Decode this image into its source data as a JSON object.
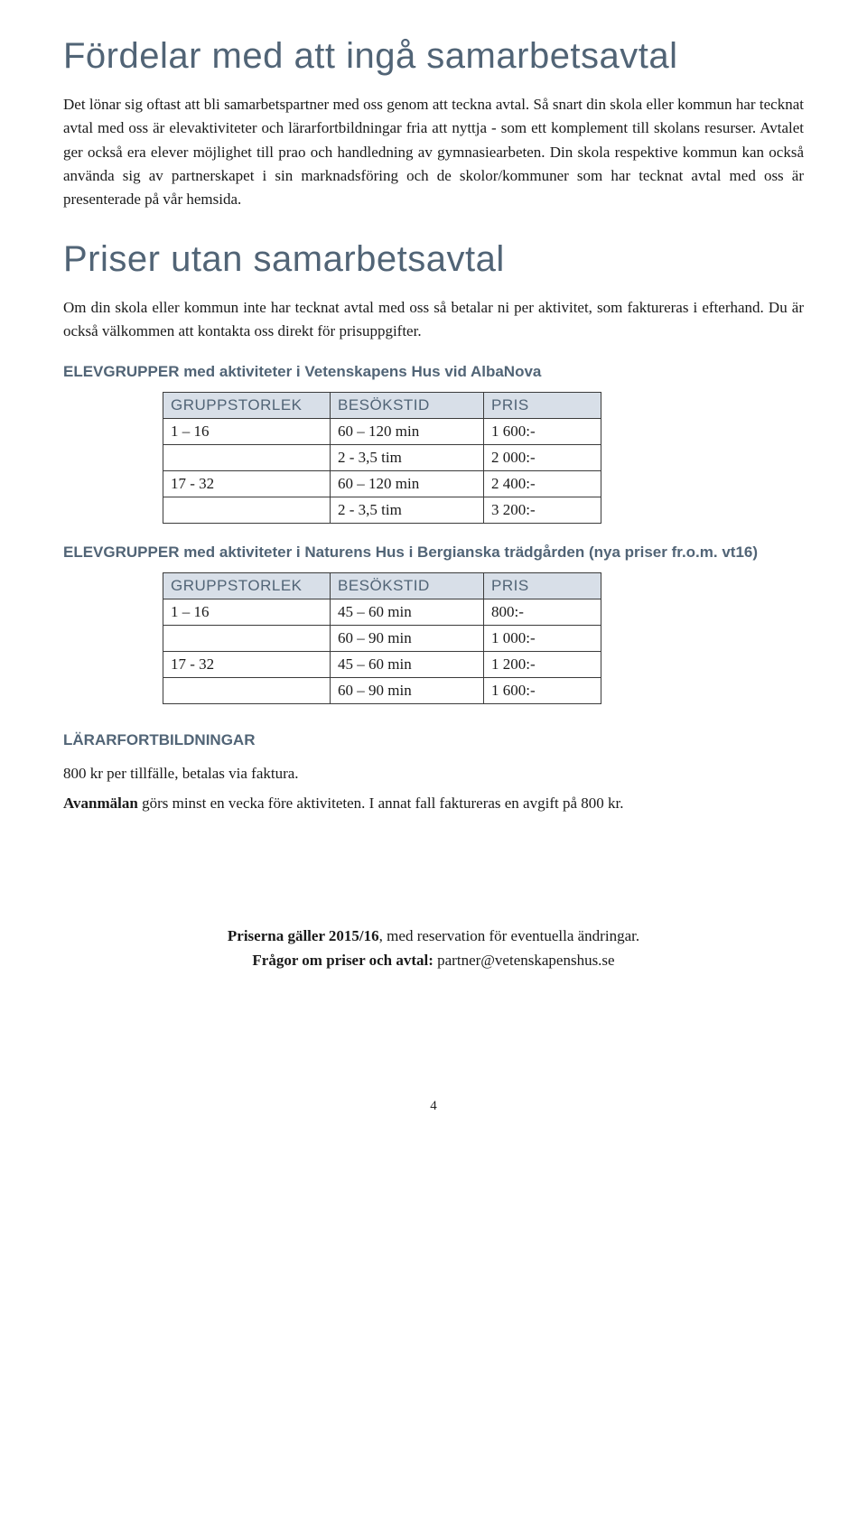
{
  "heading1": "Fördelar med att ingå samarbetsavtal",
  "para1": "Det lönar sig oftast att bli samarbetspartner med oss genom att teckna avtal. Så snart din skola eller kommun har tecknat avtal med oss är elevaktiviteter och lärarfortbildningar fria att nyttja - som ett komplement till skolans resurser. Avtalet ger också era elever möjlighet till prao och handledning av gymnasiearbeten. Din skola respektive kommun kan också använda sig av partnerskapet i sin marknadsföring och de skolor/kommuner som har tecknat avtal med oss är presenterade på vår hemsida.",
  "heading2": "Priser utan samarbetsavtal",
  "para2": "Om din skola eller kommun inte har tecknat avtal med oss så betalar ni per aktivitet, som faktureras i efterhand. Du är också välkommen att kontakta oss direkt för prisuppgifter.",
  "table1": {
    "title": "ELEVGRUPPER med aktiviteter i Vetenskapens Hus vid AlbaNova",
    "headers": {
      "group": "GRUPPSTORLEK",
      "time": "BESÖKSTID",
      "price": "PRIS"
    },
    "rows": [
      {
        "group": "1 – 16",
        "time": "60 – 120 min",
        "price": "1 600:-"
      },
      {
        "group": "",
        "time": "2 - 3,5 tim",
        "price": "2 000:-"
      },
      {
        "group": "17 - 32",
        "time": "60 – 120 min",
        "price": "2 400:-"
      },
      {
        "group": "",
        "time": "2 - 3,5 tim",
        "price": "3 200:-"
      }
    ]
  },
  "table2": {
    "title": "ELEVGRUPPER med aktiviteter i Naturens Hus i Bergianska trädgården (nya priser fr.o.m. vt16)",
    "headers": {
      "group": "GRUPPSTORLEK",
      "time": "BESÖKSTID",
      "price": "PRIS"
    },
    "rows": [
      {
        "group": "1 – 16",
        "time": "45 – 60 min",
        "price": "800:-"
      },
      {
        "group": "",
        "time": "60 – 90 min",
        "price": "1 000:-"
      },
      {
        "group": "17 - 32",
        "time": "45 – 60 min",
        "price": "1 200:-"
      },
      {
        "group": "",
        "time": "60 – 90 min",
        "price": "1 600:-"
      }
    ]
  },
  "teacher": {
    "heading": "LÄRARFORTBILDNINGAR",
    "line1": "800 kr per tillfälle, betalas via faktura.",
    "line2_bold": "Avanmälan",
    "line2_rest": " görs minst en vecka före aktiviteten. I annat fall faktureras en avgift på 800 kr."
  },
  "footer": {
    "line1_bold": "Priserna gäller 2015/16",
    "line1_rest": ", med reservation för eventuella ändringar.",
    "line2_bold": "Frågor om priser och avtal:",
    "line2_rest": " partner@vetenskapenshus.se"
  },
  "page_number": "4"
}
